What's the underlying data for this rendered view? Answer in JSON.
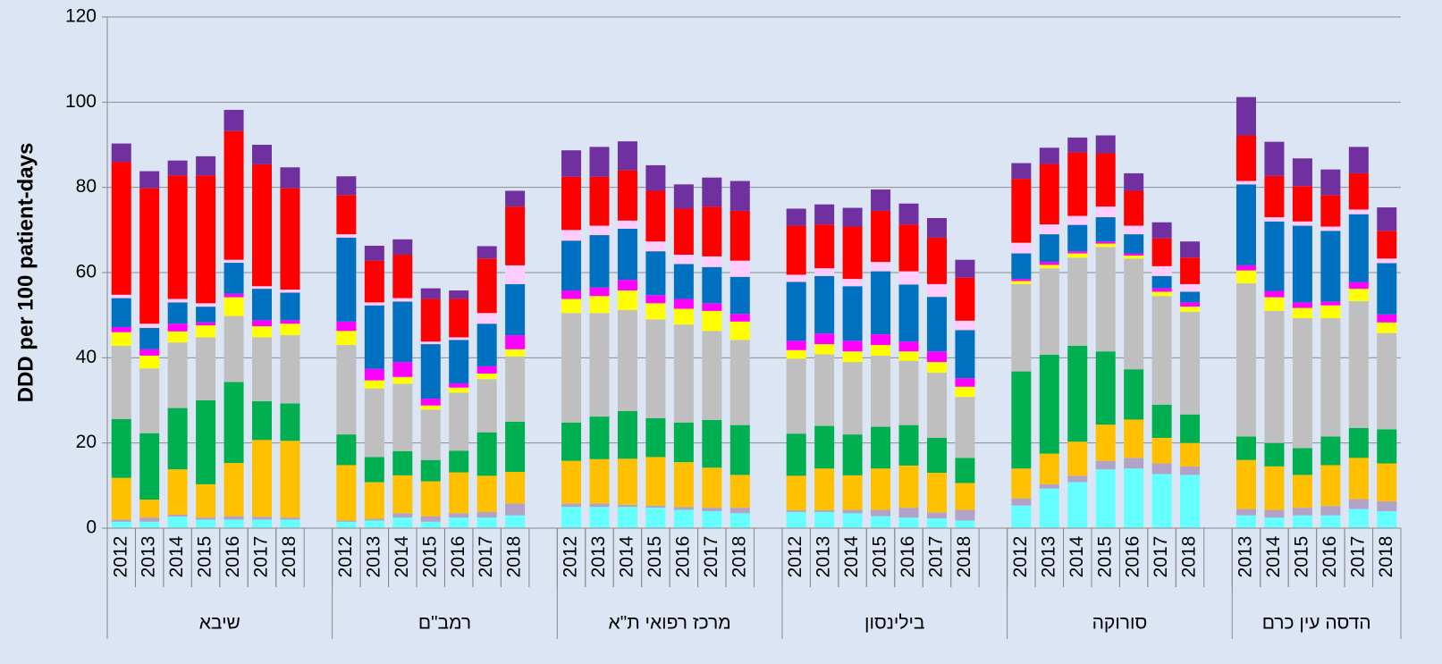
{
  "chart_data": {
    "type": "stacked_bar",
    "y_label": "DDD per 100 patient-days",
    "groups": [
      {
        "label": "שיבא",
        "categories": [
          "2012",
          "2013",
          "2014",
          "2015",
          "2016",
          "2017",
          "2018"
        ]
      },
      {
        "label": "רמב\"ם",
        "categories": [
          "2012",
          "2013",
          "2014",
          "2015",
          "2016",
          "2017",
          "2018"
        ]
      },
      {
        "label": "מרכז רפואי ת\"א",
        "categories": [
          "2012",
          "2013",
          "2014",
          "2015",
          "2016",
          "2017",
          "2018"
        ]
      },
      {
        "label": "בילינסון",
        "categories": [
          "2012",
          "2013",
          "2014",
          "2015",
          "2016",
          "2017",
          "2018"
        ]
      },
      {
        "label": "סורוקה",
        "categories": [
          "2012",
          "2013",
          "2014",
          "2015",
          "2016",
          "2017",
          "2018"
        ]
      },
      {
        "label": "הדסה עין כרם",
        "categories": [
          "2013",
          "2014",
          "2015",
          "2016",
          "2017",
          "2018"
        ]
      }
    ],
    "series": [
      {
        "color": "#66ffff",
        "values": [
          1.5,
          1.5,
          2.7,
          2,
          2,
          2,
          2,
          1.5,
          1.8,
          2.5,
          1.5,
          2.5,
          2.5,
          3,
          5,
          5,
          5,
          4.8,
          4.3,
          4,
          3.5,
          3.8,
          3.8,
          3.5,
          2.8,
          2.5,
          2.3,
          1.8,
          5.3,
          9.3,
          10.8,
          13.8,
          14,
          12.7,
          12.5,
          3,
          2.5,
          3,
          3,
          4.5,
          4
        ]
      },
      {
        "color": "#b3a2c7",
        "values": [
          0.5,
          1,
          0.5,
          0.5,
          0.8,
          0.7,
          0.5,
          0.3,
          0.4,
          1,
          1.3,
          1,
          1.3,
          2.8,
          0.8,
          0.8,
          0.5,
          0.5,
          0.7,
          0.8,
          1.3,
          0.4,
          0.4,
          0.8,
          1.5,
          2.3,
          1.4,
          2.5,
          1.7,
          1,
          1.5,
          2,
          2.5,
          2.5,
          2,
          1.5,
          1.8,
          1.8,
          2.2,
          2.3,
          2.3
        ]
      },
      {
        "color": "#ffc000",
        "values": [
          9.8,
          4.2,
          10.6,
          7.8,
          12.5,
          18,
          18,
          13,
          8.6,
          8.9,
          8.2,
          9.6,
          8.5,
          7.4,
          10,
          10.4,
          10.8,
          11.4,
          10.5,
          9.4,
          7.7,
          8.1,
          9.8,
          8.1,
          9.7,
          9.9,
          9.3,
          6.3,
          7,
          7.2,
          8,
          8.5,
          9,
          6,
          5.5,
          11.5,
          10.2,
          7.7,
          9.6,
          9.7,
          8.9
        ]
      },
      {
        "color": "#00b050",
        "values": [
          13.8,
          15.6,
          14.4,
          19.7,
          19,
          9.1,
          8.8,
          7.2,
          5.9,
          5.7,
          5,
          5.1,
          10.2,
          11.8,
          9,
          10,
          11.2,
          9.1,
          9.3,
          11.2,
          11.7,
          9.9,
          10,
          9.6,
          9.8,
          9.5,
          8.2,
          5.9,
          22.8,
          23.2,
          22.5,
          17.2,
          11.8,
          7.8,
          6.7,
          5.5,
          5.5,
          6.3,
          6.7,
          7,
          8
        ]
      },
      {
        "color": "#bfbfbf",
        "values": [
          17.2,
          15.2,
          15.4,
          14.8,
          15.5,
          15,
          16,
          21,
          16.1,
          15.8,
          11.8,
          13.6,
          12.5,
          15.3,
          25.7,
          24.3,
          23.7,
          23.2,
          23,
          20.9,
          20,
          17.6,
          16.8,
          17,
          16.7,
          15.1,
          15.3,
          14.3,
          20.5,
          20.3,
          20.7,
          24.5,
          26,
          25.5,
          24.1,
          36,
          31,
          30.5,
          27.8,
          29.8,
          22.6
        ]
      },
      {
        "color": "#ffff00",
        "values": [
          3.2,
          3,
          2.6,
          2.8,
          4.4,
          2.6,
          2.7,
          3.3,
          1.9,
          1.6,
          1,
          1.2,
          1.3,
          1.7,
          3.3,
          4,
          4.6,
          3.8,
          3.7,
          4.7,
          4.3,
          2,
          2.4,
          2.5,
          2.5,
          2.2,
          2.5,
          2.4,
          0.7,
          0.8,
          1,
          0.8,
          0.7,
          1,
          1.2,
          3,
          3.2,
          2.4,
          3,
          2.9,
          2.5
        ]
      },
      {
        "color": "#ff00ff",
        "values": [
          1.2,
          1.5,
          1.8,
          0.7,
          0.8,
          1.4,
          0.8,
          2.2,
          2.7,
          3.5,
          1.6,
          1,
          1.7,
          3.3,
          2,
          2,
          2.5,
          1.9,
          2.3,
          1.8,
          1.8,
          2.2,
          2.5,
          2.5,
          2.5,
          2.3,
          2.5,
          2,
          0.5,
          0.7,
          0.5,
          0.5,
          0.5,
          0.8,
          1,
          1.2,
          1.5,
          1.3,
          0.9,
          1.6,
          1.9
        ]
      },
      {
        "color": "#0070c0",
        "values": [
          6.8,
          5,
          5,
          3.7,
          7.3,
          7.4,
          6.5,
          19.7,
          14.9,
          14.2,
          12.8,
          10.2,
          10,
          12,
          11.7,
          12.3,
          12,
          10.3,
          8.2,
          8.5,
          8.7,
          13.8,
          13.5,
          12.8,
          14.8,
          13.4,
          12.8,
          11.3,
          6,
          6.5,
          6.2,
          5.7,
          4.5,
          2.9,
          2.5,
          19,
          16.3,
          18,
          16.6,
          15.9,
          12
        ]
      },
      {
        "color": "#ffccff",
        "values": [
          0.8,
          1,
          0.8,
          0.8,
          0.7,
          0.6,
          0.7,
          0.8,
          0.7,
          0.8,
          0.6,
          0.6,
          2.5,
          4.4,
          2.5,
          2.2,
          1.9,
          2.3,
          2.2,
          2.5,
          3.8,
          1.7,
          1.8,
          1.7,
          2.2,
          3.1,
          3,
          2.2,
          2.5,
          2.3,
          2.1,
          2.5,
          2,
          2.3,
          1.8,
          0.8,
          1,
          1,
          1,
          1.1,
          1.1
        ]
      },
      {
        "color": "#ff0000",
        "values": [
          31.2,
          31.8,
          29,
          30,
          30.2,
          28.6,
          23.8,
          9.2,
          9.8,
          10.2,
          10,
          9,
          12.8,
          13.8,
          12.5,
          11.5,
          11.8,
          11.9,
          10.8,
          11.7,
          11.7,
          11.5,
          10.3,
          12.3,
          12,
          11,
          10.9,
          10.1,
          15,
          14.2,
          14.9,
          12.5,
          8.2,
          6.5,
          6.2,
          10.7,
          9.7,
          8.3,
          7.4,
          8.5,
          6.5
        ]
      },
      {
        "color": "#7030a0",
        "values": [
          4.3,
          4,
          3.5,
          4.5,
          5,
          4.6,
          4.9,
          4.4,
          3.5,
          3.6,
          2.5,
          2,
          2.9,
          3.7,
          6.2,
          7,
          6.8,
          6,
          5.7,
          6.8,
          7,
          4,
          4.7,
          4.4,
          5,
          4.9,
          4.6,
          4.2,
          3.7,
          3.8,
          3.5,
          4.2,
          4.1,
          3.8,
          3.8,
          9,
          8,
          6.5,
          6,
          6.2,
          5.5
        ]
      }
    ],
    "ylim": [
      0,
      120
    ],
    "yticks": [
      0,
      20,
      40,
      60,
      80,
      100,
      120
    ],
    "grid": true
  }
}
